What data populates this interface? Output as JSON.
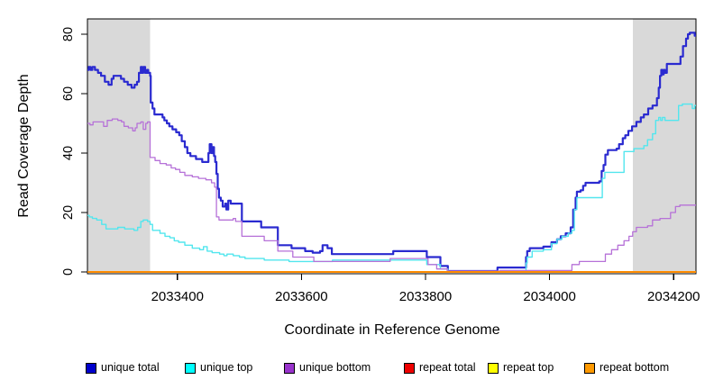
{
  "chart_data": {
    "type": "line",
    "title": "",
    "xlabel": "Coordinate in Reference Genome",
    "ylabel": "Read Coverage Depth",
    "xlim": [
      2033255,
      2034236
    ],
    "ylim": [
      0,
      85
    ],
    "grid": false,
    "legend_position": "bottom",
    "shade_color": "#D9D9D9",
    "shaded_regions": [
      {
        "name": "left-masked-region",
        "x0": 2033255,
        "x1": 2033356
      },
      {
        "name": "right-masked-region",
        "x0": 2034134,
        "x1": 2034236
      }
    ],
    "xticks": [
      {
        "v": 2033400,
        "label": "2033400"
      },
      {
        "v": 2033600,
        "label": "2033600"
      },
      {
        "v": 2033800,
        "label": "2033800"
      },
      {
        "v": 2034000,
        "label": "2034000"
      },
      {
        "v": 2034200,
        "label": "2034200"
      }
    ],
    "yticks": [
      {
        "v": 0,
        "label": "0"
      },
      {
        "v": 20,
        "label": "20"
      },
      {
        "v": 40,
        "label": "40"
      },
      {
        "v": 60,
        "label": "60"
      },
      {
        "v": 80,
        "label": "80"
      }
    ],
    "series": [
      {
        "name": "unique total",
        "color": "#0000CC",
        "line_color": "#2A2AD0",
        "width": 2.2,
        "points": [
          [
            2033255,
            68
          ],
          [
            2033257,
            69
          ],
          [
            2033260,
            68
          ],
          [
            2033263,
            69
          ],
          [
            2033267,
            68
          ],
          [
            2033272,
            67
          ],
          [
            2033277,
            66
          ],
          [
            2033283,
            64
          ],
          [
            2033289,
            63
          ],
          [
            2033294,
            65
          ],
          [
            2033297,
            66
          ],
          [
            2033305,
            66
          ],
          [
            2033309,
            65
          ],
          [
            2033314,
            64
          ],
          [
            2033320,
            63
          ],
          [
            2033326,
            62
          ],
          [
            2033331,
            63
          ],
          [
            2033335,
            64
          ],
          [
            2033338,
            67
          ],
          [
            2033341,
            69
          ],
          [
            2033343,
            67
          ],
          [
            2033345,
            69
          ],
          [
            2033348,
            67
          ],
          [
            2033351,
            68
          ],
          [
            2033353,
            67
          ],
          [
            2033356,
            66
          ],
          [
            2033357,
            57
          ],
          [
            2033360,
            55
          ],
          [
            2033363,
            53
          ],
          [
            2033376,
            52
          ],
          [
            2033379,
            51
          ],
          [
            2033383,
            50
          ],
          [
            2033387,
            49
          ],
          [
            2033392,
            48
          ],
          [
            2033398,
            47
          ],
          [
            2033403,
            46
          ],
          [
            2033407,
            44
          ],
          [
            2033412,
            42
          ],
          [
            2033416,
            40
          ],
          [
            2033421,
            39
          ],
          [
            2033430,
            38
          ],
          [
            2033440,
            37
          ],
          [
            2033450,
            40
          ],
          [
            2033452,
            43
          ],
          [
            2033455,
            40
          ],
          [
            2033457,
            42
          ],
          [
            2033459,
            39
          ],
          [
            2033461,
            37
          ],
          [
            2033463,
            33
          ],
          [
            2033465,
            28
          ],
          [
            2033467,
            25
          ],
          [
            2033470,
            24
          ],
          [
            2033473,
            22
          ],
          [
            2033477,
            23
          ],
          [
            2033479,
            21
          ],
          [
            2033482,
            24
          ],
          [
            2033486,
            23
          ],
          [
            2033504,
            17
          ],
          [
            2033535,
            15
          ],
          [
            2033562,
            9
          ],
          [
            2033584,
            8
          ],
          [
            2033606,
            7
          ],
          [
            2033618,
            6.5
          ],
          [
            2033630,
            7
          ],
          [
            2033634,
            9
          ],
          [
            2033642,
            8
          ],
          [
            2033649,
            6
          ],
          [
            2033748,
            7
          ],
          [
            2033802,
            5
          ],
          [
            2033824,
            2
          ],
          [
            2033836,
            0.3
          ],
          [
            2033916,
            1.5
          ],
          [
            2033962,
            5
          ],
          [
            2033964,
            7
          ],
          [
            2033968,
            8
          ],
          [
            2033990,
            8.5
          ],
          [
            2034003,
            10
          ],
          [
            2034012,
            11
          ],
          [
            2034018,
            12
          ],
          [
            2034026,
            13
          ],
          [
            2034034,
            15
          ],
          [
            2034038,
            21
          ],
          [
            2034042,
            25
          ],
          [
            2034044,
            27
          ],
          [
            2034050,
            27.5
          ],
          [
            2034054,
            29
          ],
          [
            2034058,
            30
          ],
          [
            2034080,
            30.5
          ],
          [
            2034084,
            34
          ],
          [
            2034087,
            36
          ],
          [
            2034090,
            39.5
          ],
          [
            2034094,
            41
          ],
          [
            2034108,
            41.5
          ],
          [
            2034112,
            43
          ],
          [
            2034118,
            45
          ],
          [
            2034122,
            46
          ],
          [
            2034127,
            47.5
          ],
          [
            2034133,
            49
          ],
          [
            2034140,
            50.5
          ],
          [
            2034147,
            52
          ],
          [
            2034152,
            53
          ],
          [
            2034159,
            55
          ],
          [
            2034166,
            56
          ],
          [
            2034173,
            58.5
          ],
          [
            2034176,
            62
          ],
          [
            2034178,
            66
          ],
          [
            2034180,
            68
          ],
          [
            2034182,
            66.5
          ],
          [
            2034184,
            68
          ],
          [
            2034186,
            67
          ],
          [
            2034189,
            70
          ],
          [
            2034208,
            70
          ],
          [
            2034211,
            72.5
          ],
          [
            2034215,
            76
          ],
          [
            2034220,
            78.5
          ],
          [
            2034223,
            80
          ],
          [
            2034226,
            80.5
          ],
          [
            2034232,
            80.5
          ],
          [
            2034234,
            79.5
          ],
          [
            2034236,
            79.5
          ]
        ]
      },
      {
        "name": "unique top",
        "color": "#00FFFF",
        "line_color": "#52E6EE",
        "width": 1.4,
        "points": [
          [
            2033255,
            19
          ],
          [
            2033258,
            18.5
          ],
          [
            2033263,
            18
          ],
          [
            2033270,
            17.5
          ],
          [
            2033278,
            16
          ],
          [
            2033285,
            14.5
          ],
          [
            2033304,
            15
          ],
          [
            2033315,
            14.5
          ],
          [
            2033330,
            14
          ],
          [
            2033336,
            15
          ],
          [
            2033341,
            17
          ],
          [
            2033345,
            17.5
          ],
          [
            2033352,
            17
          ],
          [
            2033356,
            16
          ],
          [
            2033360,
            14
          ],
          [
            2033372,
            13
          ],
          [
            2033380,
            12
          ],
          [
            2033388,
            11.5
          ],
          [
            2033395,
            10.5
          ],
          [
            2033402,
            10
          ],
          [
            2033412,
            9
          ],
          [
            2033424,
            8
          ],
          [
            2033436,
            7.5
          ],
          [
            2033442,
            8.5
          ],
          [
            2033448,
            7
          ],
          [
            2033456,
            6.5
          ],
          [
            2033468,
            6
          ],
          [
            2033475,
            5.5
          ],
          [
            2033480,
            6
          ],
          [
            2033490,
            5.5
          ],
          [
            2033500,
            5
          ],
          [
            2033509,
            4.5
          ],
          [
            2033540,
            4
          ],
          [
            2033580,
            3.5
          ],
          [
            2033650,
            4
          ],
          [
            2033802,
            2.5
          ],
          [
            2033824,
            1
          ],
          [
            2033836,
            0.2
          ],
          [
            2033962,
            3
          ],
          [
            2033964,
            5
          ],
          [
            2033972,
            7
          ],
          [
            2033990,
            7.5
          ],
          [
            2034003,
            9.5
          ],
          [
            2034012,
            11
          ],
          [
            2034020,
            12
          ],
          [
            2034030,
            13
          ],
          [
            2034036,
            14
          ],
          [
            2034040,
            21
          ],
          [
            2034044,
            25
          ],
          [
            2034085,
            31.5
          ],
          [
            2034089,
            33.5
          ],
          [
            2034120,
            40.5
          ],
          [
            2034136,
            41.5
          ],
          [
            2034152,
            42.5
          ],
          [
            2034158,
            44.5
          ],
          [
            2034166,
            46.5
          ],
          [
            2034171,
            51
          ],
          [
            2034176,
            52
          ],
          [
            2034179,
            51
          ],
          [
            2034182,
            52
          ],
          [
            2034186,
            51
          ],
          [
            2034208,
            56
          ],
          [
            2034214,
            56.5
          ],
          [
            2034230,
            55
          ],
          [
            2034234,
            56
          ],
          [
            2034236,
            56
          ]
        ]
      },
      {
        "name": "unique bottom",
        "color": "#9933CC",
        "line_color": "#B671D8",
        "width": 1.3,
        "points": [
          [
            2033255,
            50
          ],
          [
            2033259,
            49.5
          ],
          [
            2033264,
            50.5
          ],
          [
            2033278,
            50.5
          ],
          [
            2033281,
            49
          ],
          [
            2033287,
            51
          ],
          [
            2033295,
            51.5
          ],
          [
            2033304,
            51
          ],
          [
            2033310,
            50.5
          ],
          [
            2033314,
            49
          ],
          [
            2033321,
            48.5
          ],
          [
            2033328,
            47.5
          ],
          [
            2033332,
            48.5
          ],
          [
            2033335,
            50
          ],
          [
            2033341,
            50.5
          ],
          [
            2033345,
            48
          ],
          [
            2033349,
            50
          ],
          [
            2033352,
            50.5
          ],
          [
            2033356,
            38.5
          ],
          [
            2033364,
            37.5
          ],
          [
            2033372,
            36.5
          ],
          [
            2033382,
            36
          ],
          [
            2033390,
            35
          ],
          [
            2033397,
            34.5
          ],
          [
            2033404,
            33.5
          ],
          [
            2033412,
            32.5
          ],
          [
            2033424,
            32
          ],
          [
            2033434,
            31.5
          ],
          [
            2033446,
            31
          ],
          [
            2033455,
            30
          ],
          [
            2033460,
            28.5
          ],
          [
            2033463,
            18.5
          ],
          [
            2033467,
            17.5
          ],
          [
            2033490,
            18
          ],
          [
            2033494,
            17
          ],
          [
            2033504,
            12
          ],
          [
            2033540,
            10.5
          ],
          [
            2033562,
            7
          ],
          [
            2033586,
            5
          ],
          [
            2033620,
            3.5
          ],
          [
            2033743,
            4.5
          ],
          [
            2033804,
            2.5
          ],
          [
            2033818,
            1
          ],
          [
            2033835,
            0.3
          ],
          [
            2033920,
            0.5
          ],
          [
            2034036,
            2.5
          ],
          [
            2034048,
            3.5
          ],
          [
            2034090,
            6
          ],
          [
            2034100,
            7.5
          ],
          [
            2034110,
            9
          ],
          [
            2034120,
            10.5
          ],
          [
            2034128,
            12
          ],
          [
            2034134,
            13.5
          ],
          [
            2034140,
            15
          ],
          [
            2034158,
            15.5
          ],
          [
            2034166,
            17.5
          ],
          [
            2034178,
            18
          ],
          [
            2034195,
            20
          ],
          [
            2034203,
            22
          ],
          [
            2034210,
            22.5
          ],
          [
            2034236,
            22.5
          ]
        ]
      },
      {
        "name": "repeat total",
        "color": "#EE0000",
        "line_color": "#EE0000",
        "width": 1.3,
        "points": [
          [
            2033255,
            0
          ],
          [
            2034236,
            0
          ]
        ]
      },
      {
        "name": "repeat top",
        "color": "#FFFF00",
        "line_color": "#FFFF00",
        "width": 1.3,
        "points": [
          [
            2033255,
            0
          ],
          [
            2034236,
            0
          ]
        ]
      },
      {
        "name": "repeat bottom",
        "color": "#FF9900",
        "line_color": "#FF8C00",
        "width": 2,
        "points": [
          [
            2033255,
            0
          ],
          [
            2034236,
            0
          ]
        ]
      }
    ]
  }
}
